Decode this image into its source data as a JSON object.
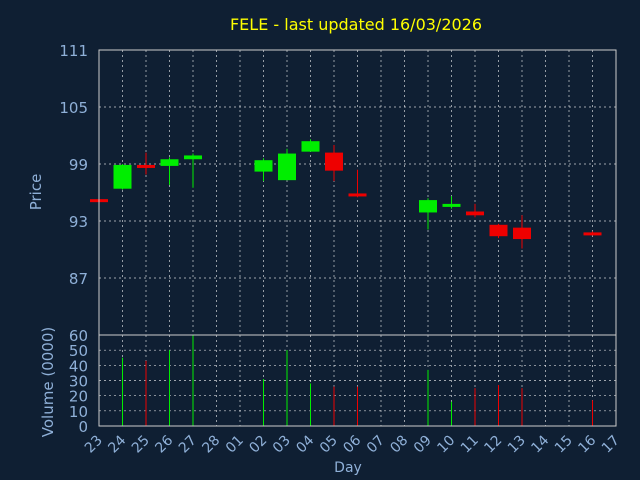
{
  "chart_data": {
    "title": "FELE - last updated 16/03/2026",
    "xlabel": "Day",
    "colors": {
      "background": "#0f1f33",
      "title": "#ffff00",
      "axis_text": "#8fb0d8",
      "up": "#00ee00",
      "down": "#ee0000",
      "grid": "#ffffff"
    },
    "categories": [
      "23",
      "24",
      "25",
      "26",
      "27",
      "28",
      "01",
      "02",
      "03",
      "04",
      "05",
      "06",
      "07",
      "08",
      "09",
      "10",
      "11",
      "12",
      "13",
      "14",
      "15",
      "16",
      "17"
    ],
    "price_panel": {
      "type": "candlestick",
      "ylabel": "Price",
      "ylim": [
        81,
        111
      ],
      "yticks": [
        111,
        105,
        99,
        93,
        87
      ],
      "grid": true,
      "candles": [
        {
          "x": "23",
          "open": 95.3,
          "close": 95.1,
          "high": 95.4,
          "low": 95.0
        },
        {
          "x": "24",
          "open": 96.4,
          "close": 98.9,
          "high": 99.0,
          "low": 96.3
        },
        {
          "x": "25",
          "open": 98.9,
          "close": 98.6,
          "high": 100.2,
          "low": 97.9
        },
        {
          "x": "26",
          "open": 98.8,
          "close": 99.5,
          "high": 99.7,
          "low": 96.8
        },
        {
          "x": "27",
          "open": 99.5,
          "close": 99.9,
          "high": 100.1,
          "low": 96.5
        },
        {
          "x": "02",
          "open": 98.2,
          "close": 99.4,
          "high": 99.6,
          "low": 97.2
        },
        {
          "x": "03",
          "open": 97.3,
          "close": 100.1,
          "high": 100.6,
          "low": 97.3
        },
        {
          "x": "04",
          "open": 100.3,
          "close": 101.4,
          "high": 101.6,
          "low": 100.3
        },
        {
          "x": "05",
          "open": 100.2,
          "close": 98.3,
          "high": 101.0,
          "low": 97.2
        },
        {
          "x": "06",
          "open": 95.9,
          "close": 95.6,
          "high": 98.4,
          "low": 95.5
        },
        {
          "x": "09",
          "open": 93.9,
          "close": 95.2,
          "high": 95.4,
          "low": 92.1
        },
        {
          "x": "10",
          "open": 94.5,
          "close": 94.8,
          "high": 95.6,
          "low": 94.3
        },
        {
          "x": "11",
          "open": 94.0,
          "close": 93.6,
          "high": 94.8,
          "low": 93.4
        },
        {
          "x": "12",
          "open": 92.6,
          "close": 91.4,
          "high": 92.7,
          "low": 91.2
        },
        {
          "x": "13",
          "open": 92.3,
          "close": 91.1,
          "high": 93.6,
          "low": 90.1
        },
        {
          "x": "16",
          "open": 91.8,
          "close": 91.6,
          "high": 91.9,
          "low": 91.5
        }
      ]
    },
    "volume_panel": {
      "type": "bar",
      "ylabel": "Volume (0000)",
      "ylim": [
        0,
        60
      ],
      "yticks": [
        60,
        50,
        40,
        30,
        20,
        10,
        0
      ],
      "grid": true,
      "bars": [
        {
          "x": "23",
          "value": 0,
          "direction": "up"
        },
        {
          "x": "24",
          "value": 45,
          "direction": "up"
        },
        {
          "x": "25",
          "value": 43,
          "direction": "down"
        },
        {
          "x": "26",
          "value": 50,
          "direction": "up"
        },
        {
          "x": "27",
          "value": 60,
          "direction": "up"
        },
        {
          "x": "02",
          "value": 31,
          "direction": "up"
        },
        {
          "x": "03",
          "value": 50,
          "direction": "up"
        },
        {
          "x": "04",
          "value": 28,
          "direction": "up"
        },
        {
          "x": "05",
          "value": 26,
          "direction": "down"
        },
        {
          "x": "06",
          "value": 26,
          "direction": "down"
        },
        {
          "x": "09",
          "value": 37,
          "direction": "up"
        },
        {
          "x": "10",
          "value": 16,
          "direction": "up"
        },
        {
          "x": "11",
          "value": 25,
          "direction": "down"
        },
        {
          "x": "12",
          "value": 27,
          "direction": "down"
        },
        {
          "x": "13",
          "value": 25,
          "direction": "down"
        },
        {
          "x": "16",
          "value": 17,
          "direction": "down"
        }
      ]
    }
  }
}
